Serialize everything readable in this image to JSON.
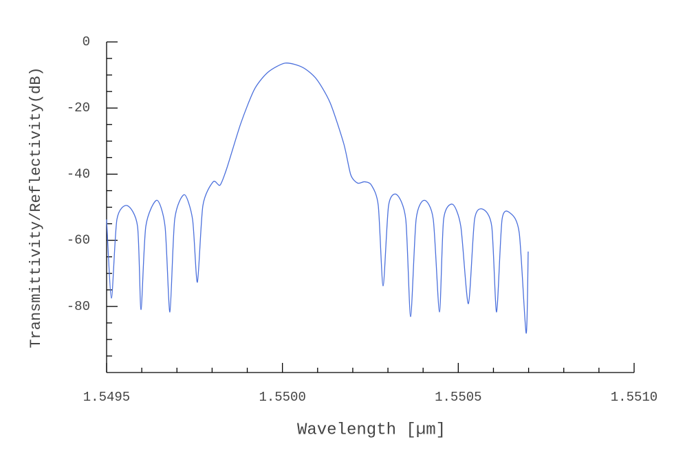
{
  "chart_data": {
    "type": "line",
    "x_label": "Wavelength [µm]",
    "y_label": "Transmittivity/Reflectivity(dB)",
    "xlim": [
      1.5495,
      1.551
    ],
    "xticks": [
      1.5495,
      {
        "value": 1.55,
        "label": "1.5500"
      },
      1.5505,
      {
        "value": 1.551,
        "label": "1.5510"
      }
    ],
    "xminorticks": [
      1.5496,
      1.5497,
      1.5498,
      1.5499,
      1.5501,
      1.5502,
      1.5503,
      1.5504,
      1.5506,
      1.5507,
      1.5508,
      1.5509
    ],
    "ylim": [
      -100,
      0
    ],
    "yticks": [
      0,
      -20,
      -40,
      -60,
      -80
    ],
    "yminorticks": [
      -5,
      -10,
      -15,
      -25,
      -30,
      -35,
      -45,
      -50,
      -55,
      -65,
      -70,
      -75,
      -85,
      -90,
      -95
    ],
    "series": [
      {
        "color": "#4a6fdc",
        "x": [
          1.5495,
          1.5495137,
          1.5495293,
          1.5495587,
          1.549588,
          1.5495978,
          1.5496115,
          1.5496428,
          1.5496662,
          1.5496799,
          1.5496936,
          1.549721,
          1.5497445,
          1.5497581,
          1.5497738,
          1.5498031,
          1.5498227,
          1.5498422,
          1.5498814,
          1.5499205,
          1.5499596,
          1.5500085,
          1.5500574,
          1.5500965,
          1.5501356,
          1.5501747,
          1.5501943,
          1.5502138,
          1.5502334,
          1.5502529,
          1.5502725,
          1.5502862,
          1.5503018,
          1.5503253,
          1.5503507,
          1.5503644,
          1.5503801,
          1.5504035,
          1.5504289,
          1.5504465,
          1.5504583,
          1.5504837,
          1.5505072,
          1.5505287,
          1.5505463,
          1.5505698,
          1.5505952,
          1.5506089,
          1.5506245,
          1.550648,
          1.5506734,
          1.550693,
          1.5506988
        ],
        "values": [
          -53.7,
          -77.5,
          -53.7,
          -49.5,
          -55.8,
          -81,
          -55.8,
          -47.9,
          -55.8,
          -81.7,
          -53.7,
          -46.2,
          -53.7,
          -72.7,
          -49.5,
          -42.3,
          -43.3,
          -38.1,
          -24.7,
          -14.3,
          -9.1,
          -6.4,
          -7.7,
          -11.2,
          -18.4,
          -30.9,
          -40.2,
          -42.7,
          -42.3,
          -43.3,
          -49.5,
          -73.8,
          -49.5,
          -46.2,
          -53.7,
          -83.1,
          -53.7,
          -47.9,
          -53.7,
          -81.7,
          -53.7,
          -49.1,
          -55.8,
          -79.2,
          -53.7,
          -50.6,
          -55.8,
          -81.7,
          -53.7,
          -51.8,
          -57.8,
          -88.1,
          -63.4
        ]
      }
    ]
  }
}
